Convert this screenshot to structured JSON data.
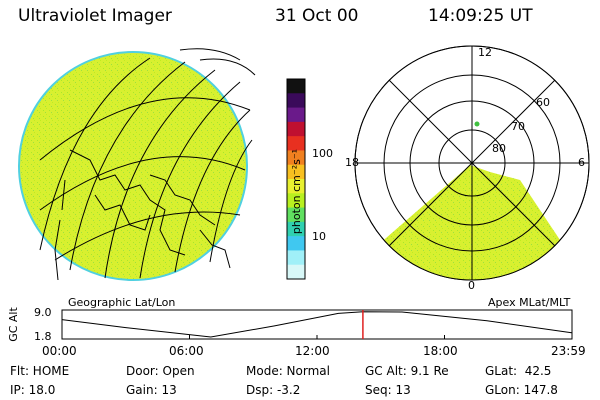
{
  "header": {
    "instrument": "Ultraviolet Imager",
    "date": "31 Oct 00",
    "time": "14:09:25 UT"
  },
  "colorbar": {
    "unit_label": "photon cm⁻²s⁻¹",
    "ticks": [
      "100",
      "10"
    ],
    "colors": [
      "#111111",
      "#3a0a5a",
      "#6a1a8a",
      "#c01030",
      "#e83020",
      "#f08020",
      "#f8c020",
      "#e8f030",
      "#b8f020",
      "#60e060",
      "#30d0b0",
      "#40c8f0",
      "#a0f0f8",
      "#d8f8f8"
    ]
  },
  "globe_panel": {
    "label": "Geographic Lat/Lon",
    "fill_color": "#d8f030",
    "rim_color": "#50d0e0"
  },
  "polar_panel": {
    "label": "Apex MLat/MLT",
    "mlt_labels": {
      "top": "12",
      "left": "18",
      "right": "6",
      "bottom": "0"
    },
    "lat_labels": [
      "60",
      "70",
      "80"
    ],
    "fill_color": "#d8f030"
  },
  "altitude_plot": {
    "ylabel": "GC Alt",
    "ytick_top": "9.0",
    "ytick_bottom": "1.8",
    "xticks": [
      "00:00",
      "06:00",
      "12:00",
      "18:00",
      "23:59"
    ],
    "marker_color": "#e02020"
  },
  "chart_data": {
    "type": "line",
    "ylabel": "GC Alt",
    "ylim": [
      1.8,
      9.0
    ],
    "x": [
      0,
      3,
      7,
      10,
      13,
      14.16,
      16,
      20,
      23.98
    ],
    "y": [
      6.8,
      4.5,
      1.8,
      5.0,
      8.6,
      9.1,
      9.0,
      6.5,
      3.0
    ],
    "marker_x": 14.16
  },
  "status": {
    "flt": "Flt: HOME",
    "ip": "IP: 18.0",
    "door": "Door: Open",
    "gain": "Gain: 13",
    "mode": "Mode: Normal",
    "dsp": "Dsp:   -3.2",
    "gcalt": "GC Alt: 9.1 Re",
    "seq": "Seq: 13",
    "glat": "GLat:  42.5",
    "glon": "GLon: 147.8"
  }
}
